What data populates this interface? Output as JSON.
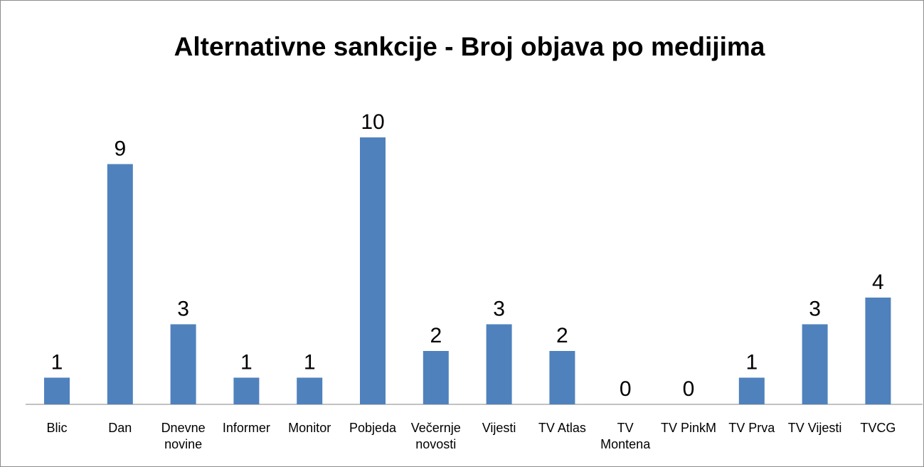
{
  "chart_data": {
    "type": "bar",
    "title": "Alternativne sankcije - Broj objava po medijima",
    "categories": [
      "Blic",
      "Dan",
      "Dnevne novine",
      "Informer",
      "Monitor",
      "Pobjeda",
      "Večernje novosti",
      "Vijesti",
      "TV Atlas",
      "TV Montena",
      "TV PinkM",
      "TV Prva",
      "TV Vijesti",
      "TVCG"
    ],
    "values": [
      1,
      9,
      3,
      1,
      1,
      10,
      2,
      3,
      2,
      0,
      0,
      1,
      3,
      4
    ],
    "color": "#4f81bd",
    "grid": false
  }
}
